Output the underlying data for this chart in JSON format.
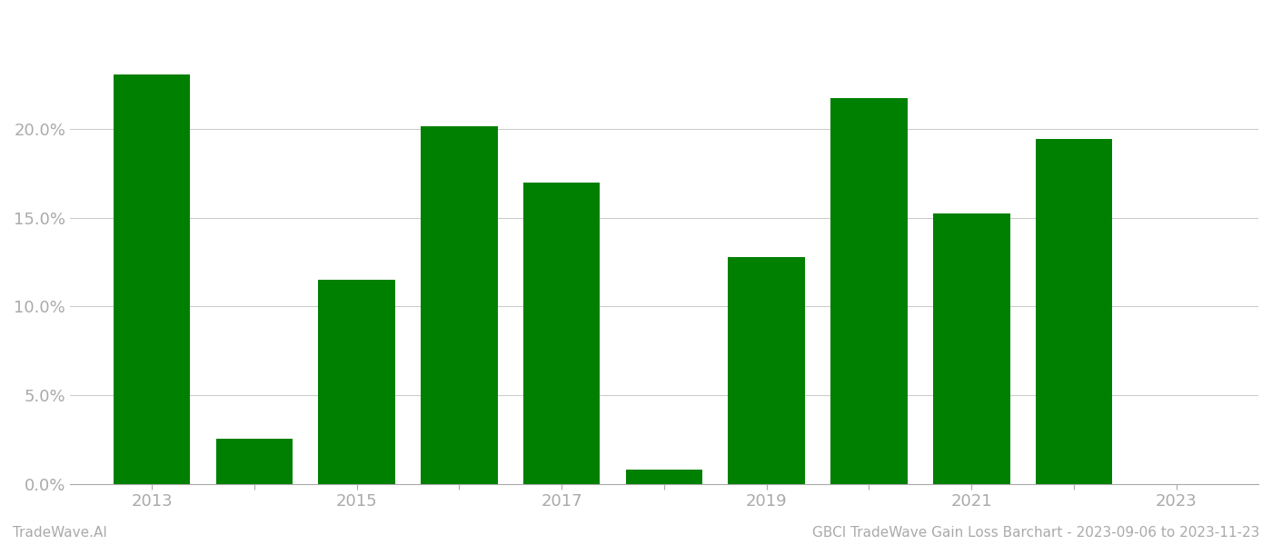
{
  "years": [
    2013,
    2014,
    2015,
    2016,
    2017,
    2018,
    2019,
    2020,
    2021,
    2022
  ],
  "values": [
    0.2305,
    0.0253,
    0.1148,
    0.2013,
    0.17,
    0.008,
    0.128,
    0.2175,
    0.1522,
    0.1942
  ],
  "bar_color": "#008000",
  "background_color": "#ffffff",
  "grid_color": "#cccccc",
  "axis_color": "#aaaaaa",
  "tick_label_color": "#aaaaaa",
  "ylabel_ticks": [
    0.0,
    0.05,
    0.1,
    0.15,
    0.2
  ],
  "ylim": [
    0,
    0.265
  ],
  "xlim": [
    2012.2,
    2023.8
  ],
  "xticks_all": [
    2013,
    2014,
    2015,
    2016,
    2017,
    2018,
    2019,
    2020,
    2021,
    2022,
    2023
  ],
  "xticks_labeled": [
    2013,
    2015,
    2017,
    2019,
    2021,
    2023
  ],
  "footer_left": "TradeWave.AI",
  "footer_right": "GBCI TradeWave Gain Loss Barchart - 2023-09-06 to 2023-11-23",
  "footer_color": "#aaaaaa",
  "footer_fontsize": 11,
  "bar_width": 0.75
}
